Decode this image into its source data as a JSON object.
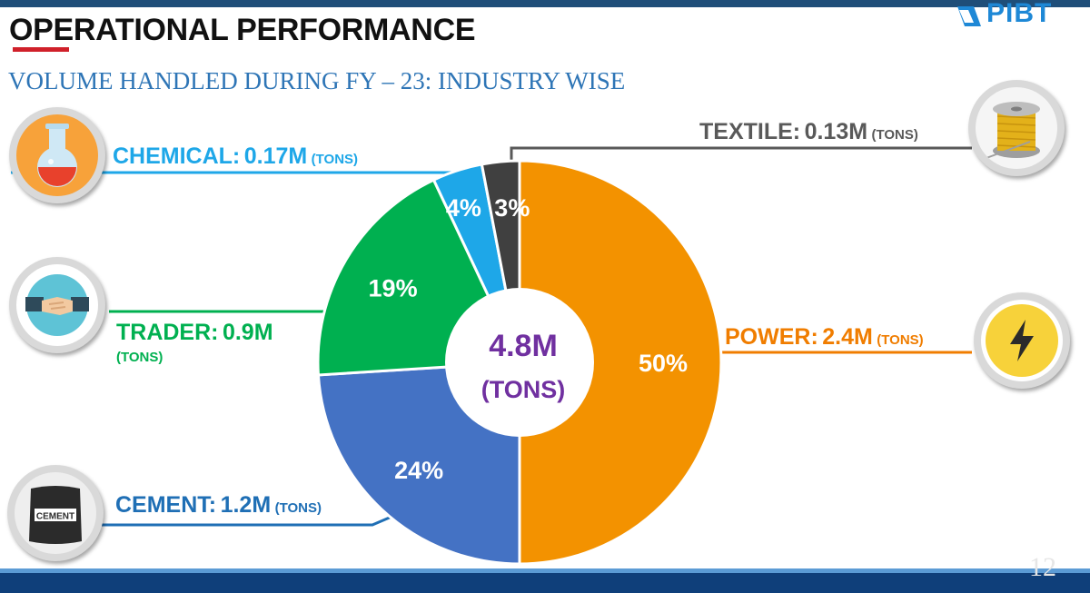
{
  "header": {
    "title": "OPERATIONAL PERFORMANCE",
    "subtitle": "VOLUME HANDLED DURING FY – 23: INDUSTRY WISE",
    "logo_text": "PIBT"
  },
  "center": {
    "value": "4.8M",
    "unit": "(TONS)"
  },
  "page_number": "12",
  "labels": {
    "chemical": {
      "name": "CHEMICAL:",
      "value": "0.17M",
      "unit": "(TONS)"
    },
    "textile": {
      "name": "TEXTILE:",
      "value": "0.13M",
      "unit": "(TONS)"
    },
    "trader": {
      "name": "TRADER:",
      "value": "0.9M",
      "unit": "(TONS)"
    },
    "power": {
      "name": "POWER:",
      "value": "2.4M",
      "unit": "(TONS)"
    },
    "cement": {
      "name": "CEMENT:",
      "value": "1.2M",
      "unit": "(TONS)"
    },
    "cement_bag": "CEMENT"
  },
  "chart_data": {
    "type": "pie",
    "title": "VOLUME HANDLED DURING FY – 23: INDUSTRY WISE",
    "center_label": "4.8M (TONS)",
    "slices": [
      {
        "name": "POWER",
        "value": 50,
        "label": "50%",
        "volume": "2.4M (TONS)",
        "color": "#f39200"
      },
      {
        "name": "CEMENT",
        "value": 24,
        "label": "24%",
        "volume": "1.2M (TONS)",
        "color": "#4472c4"
      },
      {
        "name": "TRADER",
        "value": 19,
        "label": "19%",
        "volume": "0.9M (TONS)",
        "color": "#00b050"
      },
      {
        "name": "CHEMICAL",
        "value": 4,
        "label": "4%",
        "volume": "0.17M (TONS)",
        "color": "#1ea7e8"
      },
      {
        "name": "TEXTILE",
        "value": 3,
        "label": "3%",
        "volume": "0.13M (TONS)",
        "color": "#404040"
      }
    ]
  },
  "colors": {
    "chemical": "#1ea7e8",
    "textile": "#595959",
    "trader": "#00b050",
    "power": "#f07d00",
    "cement": "#1f6fb5",
    "center": "#7030a0"
  }
}
